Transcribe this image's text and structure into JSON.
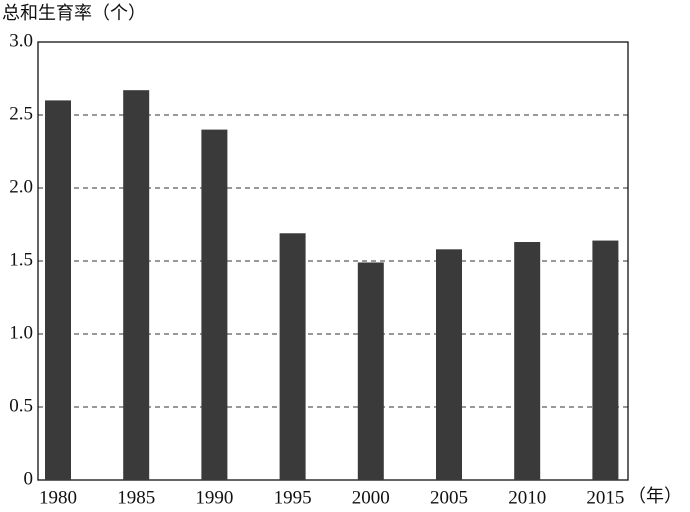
{
  "chart_data": {
    "type": "bar",
    "y_label": "总和生育率（个）",
    "x_label": "（年）",
    "categories": [
      "1980",
      "1985",
      "1990",
      "1995",
      "2000",
      "2005",
      "2010",
      "2015"
    ],
    "values": [
      2.6,
      2.67,
      2.4,
      1.69,
      1.49,
      1.58,
      1.63,
      1.64
    ],
    "color": "#3a3a3a",
    "ylim": [
      0,
      3
    ],
    "yticks": [
      0,
      0.5,
      {
        "value": 1,
        "label": "1.0"
      },
      1.5,
      {
        "value": 2,
        "label": "2.0"
      },
      2.5,
      {
        "value": 3,
        "label": "3.0"
      }
    ],
    "grid": true
  }
}
